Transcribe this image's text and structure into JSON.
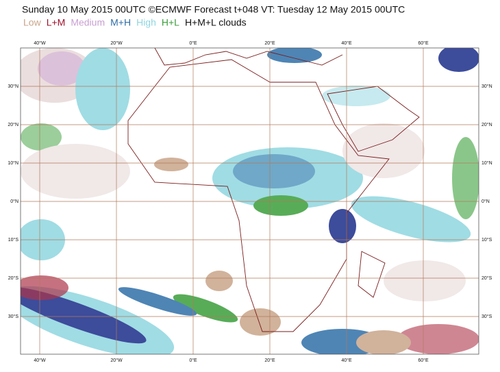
{
  "header": {
    "title": "Sunday 10 May 2015 00UTC ©ECMWF Forecast t+048 VT: Tuesday 12 May 2015 00UTC"
  },
  "legend": [
    {
      "label": "Low",
      "color": "#c9a589"
    },
    {
      "label": "L+M",
      "color": "#a0102a"
    },
    {
      "label": "Medium",
      "color": "#c9a0d2"
    },
    {
      "label": "M+H",
      "color": "#2f6fa8"
    },
    {
      "label": "High",
      "color": "#8fd6e0"
    },
    {
      "label": "H+L",
      "color": "#3a9e3a"
    },
    {
      "label": "H+M+L clouds",
      "color": "#111111"
    }
  ],
  "map": {
    "lon_labels": [
      "40°W",
      "20°W",
      "0°E",
      "20°E",
      "40°E",
      "60°E"
    ],
    "lat_labels": [
      "30°N",
      "20°N",
      "10°N",
      "0°N",
      "10°S",
      "20°S",
      "30°S"
    ]
  }
}
